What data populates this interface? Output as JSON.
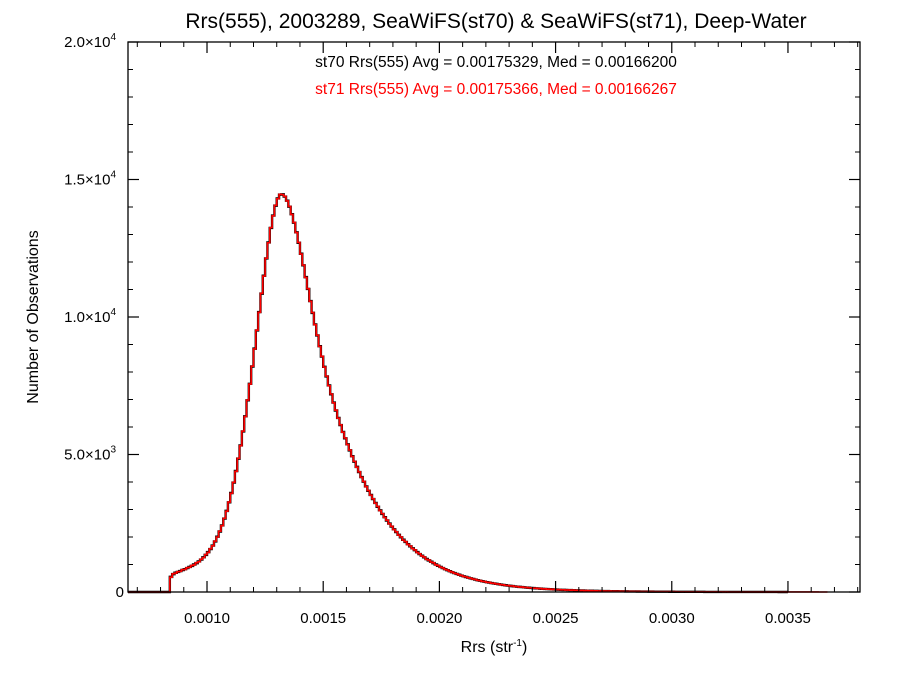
{
  "chart_data": {
    "type": "histogram",
    "title": "Rrs(555), 2003289, SeaWiFS(st70) & SeaWiFS(st71), Deep-Water",
    "xlabel": {
      "base": "Rrs (str",
      "sup": "-1",
      "tail": ")"
    },
    "ylabel": "Number of Observations",
    "xlim": [
      0.00066,
      0.00381
    ],
    "ylim": [
      0,
      20000
    ],
    "x_ticks": [
      {
        "value": 0.001,
        "label": "0.0010"
      },
      {
        "value": 0.0015,
        "label": "0.0015"
      },
      {
        "value": 0.002,
        "label": "0.0020"
      },
      {
        "value": 0.0025,
        "label": "0.0025"
      },
      {
        "value": 0.003,
        "label": "0.0030"
      },
      {
        "value": 0.0035,
        "label": "0.0035"
      }
    ],
    "y_ticks": [
      {
        "value": 0,
        "mant": "0",
        "exp": ""
      },
      {
        "value": 5000,
        "mant": "5.0×10",
        "exp": "3"
      },
      {
        "value": 10000,
        "mant": "1.0×10",
        "exp": "4"
      },
      {
        "value": 15000,
        "mant": "1.5×10",
        "exp": "4"
      },
      {
        "value": 20000,
        "mant": "2.0×10",
        "exp": "4"
      }
    ],
    "grid": false,
    "annotations": [
      {
        "text": "st70 Rrs(555) Avg = 0.00175329, Med = 0.00166200",
        "color": "#000000"
      },
      {
        "text": "st71 Rrs(555) Avg = 0.00175366, Med = 0.00166267",
        "color": "#ff0000"
      }
    ],
    "series": [
      {
        "color": "#000000",
        "bin_width": 1e-05,
        "bin_start": 0.00066,
        "values": [
          0,
          0,
          0,
          0,
          0,
          0,
          0,
          0,
          0,
          0,
          0,
          0,
          0,
          0,
          0,
          0,
          0,
          0,
          550,
          650,
          700,
          730,
          760,
          800,
          830,
          870,
          910,
          950,
          1000,
          1050,
          1110,
          1180,
          1260,
          1350,
          1450,
          1560,
          1690,
          1840,
          2010,
          2200,
          2420,
          2670,
          2950,
          3260,
          3600,
          3980,
          4400,
          4850,
          5330,
          5840,
          6390,
          6970,
          7570,
          8200,
          8850,
          9510,
          10180,
          10850,
          11500,
          12130,
          12710,
          13240,
          13690,
          14050,
          14310,
          14450,
          14460,
          14380,
          14230,
          14010,
          13740,
          13430,
          13080,
          12700,
          12300,
          11880,
          11450,
          11020,
          10580,
          10150,
          9730,
          9330,
          8940,
          8560,
          8190,
          7840,
          7510,
          7190,
          6890,
          6600,
          6330,
          6070,
          5820,
          5590,
          5370,
          5150,
          4940,
          4740,
          4550,
          4360,
          4180,
          4010,
          3840,
          3680,
          3530,
          3380,
          3240,
          3100,
          2970,
          2840,
          2720,
          2600,
          2490,
          2380,
          2280,
          2180,
          2080,
          1990,
          1900,
          1820,
          1740,
          1660,
          1590,
          1520,
          1450,
          1380,
          1320,
          1260,
          1200,
          1150,
          1100,
          1050,
          1000,
          955,
          912,
          870,
          830,
          792,
          756,
          721,
          688,
          657,
          627,
          598,
          571,
          545,
          520,
          496,
          474,
          452,
          431,
          412,
          393,
          375,
          358,
          342,
          326,
          311,
          297,
          283,
          270,
          258,
          246,
          235,
          224,
          214,
          204,
          195,
          186,
          178,
          170,
          162,
          155,
          148,
          141,
          135,
          129,
          123,
          117,
          112,
          107,
          102,
          97,
          93,
          89,
          85,
          81,
          77,
          74,
          71,
          68,
          65,
          62,
          59,
          56,
          54,
          51,
          49,
          47,
          45,
          43,
          41,
          39,
          37,
          35,
          34,
          32,
          31,
          29,
          28,
          27,
          26,
          25,
          24,
          23,
          22,
          21,
          20,
          19,
          18,
          17,
          16,
          16,
          15,
          14,
          14,
          13,
          12,
          12,
          11,
          11,
          10,
          10,
          9,
          9,
          8,
          8,
          8,
          7,
          7,
          7,
          6,
          6,
          6,
          5,
          5,
          5,
          5,
          4,
          4,
          4,
          4,
          3,
          3,
          3,
          3,
          3,
          3,
          2,
          2,
          2,
          2,
          2,
          2,
          2,
          1,
          1,
          1,
          1,
          1,
          1,
          1,
          1,
          1,
          1,
          1,
          1,
          1,
          1,
          1,
          0,
          0,
          0,
          0
        ]
      },
      {
        "color": "#ff0000",
        "bin_width": 1e-05,
        "bin_start": 0.00066,
        "values": [
          0,
          0,
          0,
          0,
          0,
          0,
          0,
          0,
          0,
          0,
          0,
          0,
          0,
          0,
          0,
          0,
          0,
          0,
          540,
          660,
          690,
          740,
          750,
          810,
          820,
          880,
          900,
          960,
          990,
          1060,
          1100,
          1190,
          1250,
          1360,
          1440,
          1570,
          1680,
          1850,
          2000,
          2210,
          2410,
          2680,
          2940,
          3270,
          3590,
          3990,
          4390,
          4860,
          5320,
          5850,
          6380,
          6980,
          7560,
          8210,
          8840,
          9520,
          10170,
          10860,
          11490,
          12140,
          12700,
          13250,
          13680,
          14060,
          14300,
          14460,
          14450,
          14390,
          14220,
          14020,
          13730,
          13440,
          13070,
          12710,
          12290,
          11890,
          11440,
          11030,
          10570,
          10160,
          9720,
          9340,
          8930,
          8570,
          8180,
          7850,
          7500,
          7200,
          6880,
          6610,
          6320,
          6080,
          5810,
          5600,
          5360,
          5160,
          4930,
          4750,
          4540,
          4370,
          4170,
          4020,
          3830,
          3690,
          3520,
          3390,
          3230,
          3110,
          2960,
          2850,
          2710,
          2610,
          2480,
          2390,
          2270,
          2190,
          2070,
          2000,
          1890,
          1830,
          1730,
          1670,
          1580,
          1530,
          1440,
          1390,
          1310,
          1270,
          1190,
          1160,
          1090,
          1060,
          990,
          960,
          905,
          875,
          825,
          797,
          751,
          726,
          683,
          662,
          622,
          603,
          566,
          550,
          515,
          501,
          469,
          457,
          426,
          417,
          388,
          380,
          353,
          347,
          321,
          316,
          292,
          288,
          265,
          263,
          241,
          240,
          219,
          219,
          199,
          200,
          181,
          183,
          165,
          167,
          150,
          153,
          136,
          140,
          124,
          128,
          113,
          117,
          103,
          107,
          94,
          98,
          86,
          90,
          78,
          82,
          71,
          75,
          65,
          69,
          59,
          63,
          53,
          57,
          48,
          52,
          44,
          48,
          40,
          44,
          36,
          40,
          33,
          36,
          30,
          33,
          27,
          30,
          25,
          28,
          22,
          25,
          21,
          23,
          19,
          21,
          17,
          19,
          16,
          17,
          15,
          16,
          14,
          15,
          13,
          14,
          12,
          13,
          11,
          12,
          11,
          11,
          10,
          10,
          9,
          9,
          8,
          9,
          8,
          8,
          7,
          8,
          7,
          7,
          6,
          7,
          6,
          6,
          5,
          6,
          5,
          5,
          5,
          5,
          4,
          5,
          4,
          4,
          4,
          4,
          3,
          4,
          3,
          3,
          3,
          3,
          3,
          3,
          2,
          3,
          2,
          2,
          2,
          2,
          2,
          2,
          2,
          2,
          1,
          2,
          1,
          1,
          1,
          1,
          1,
          1,
          1,
          1,
          1,
          1,
          1,
          1,
          1,
          1,
          1,
          0,
          0,
          0,
          0
        ]
      }
    ]
  }
}
